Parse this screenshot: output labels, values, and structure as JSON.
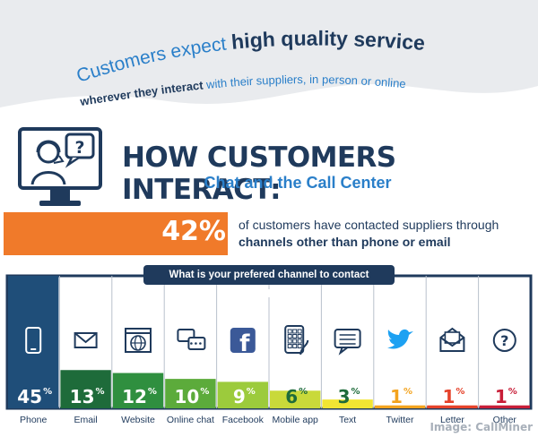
{
  "headline": {
    "line1_prefix": "Customers expect ",
    "line1_bold": "high quality service",
    "line2_bold": "wherever they interact",
    "line2_rest": " with their suppliers, in person or online"
  },
  "title": "HOW CUSTOMERS INTERACT:",
  "subtitle": "Chat and the Call Center",
  "stat": {
    "percent": "42%",
    "line1": "of customers have contacted suppliers through",
    "line2": "channels other than phone or email"
  },
  "question": "What is your prefered channel to contact suppliers?",
  "credit": "Image: CallMiner",
  "colors": {
    "navy": "#1f3a5c",
    "blue": "#2a7fc9",
    "orange": "#f07a2a"
  },
  "chart_data": {
    "type": "bar",
    "categories": [
      "Phone",
      "Email",
      "Website",
      "Online chat",
      "Facebook",
      "Mobile app",
      "Text",
      "Twitter",
      "Letter",
      "Other"
    ],
    "values": [
      45,
      13,
      12,
      10,
      9,
      6,
      3,
      1,
      1,
      1
    ],
    "labels": [
      "45",
      "13",
      "12",
      "10",
      "9",
      "6",
      "3",
      "1",
      "1",
      "1"
    ],
    "unit": "%",
    "icons": [
      "phone-icon",
      "email-icon",
      "website-icon",
      "online-chat-icon",
      "facebook-icon",
      "mobile-app-icon",
      "text-icon",
      "twitter-icon",
      "letter-icon",
      "question-icon"
    ],
    "bar_colors": [
      "#1f4e79",
      "#1e6b3a",
      "#2f8f3f",
      "#5cab3b",
      "#9ccb3c",
      "#c9d93a",
      "#f2e533",
      "#f3a31e",
      "#e5422a",
      "#c81e38"
    ],
    "label_colors": [
      "#ffffff",
      "#ffffff",
      "#ffffff",
      "#ffffff",
      "#ffffff",
      "#1e6b3a",
      "#1e6b3a",
      "#f3a31e",
      "#e5422a",
      "#c81e38"
    ],
    "ylim": [
      0,
      45
    ]
  }
}
